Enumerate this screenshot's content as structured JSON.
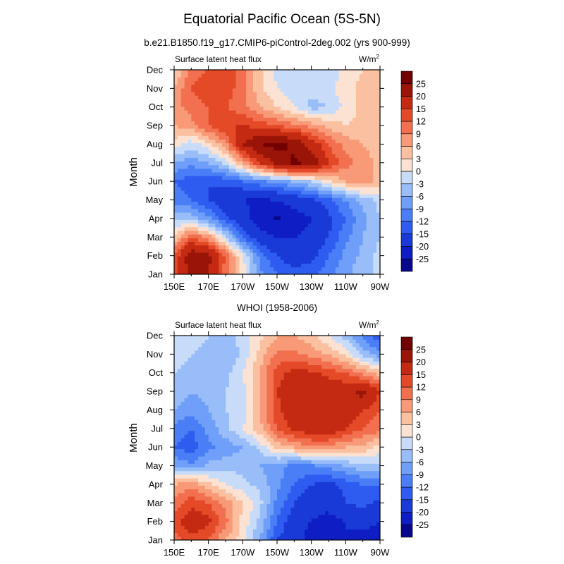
{
  "figure": {
    "title": "Equatorial Pacific Ocean (5S-5N)"
  },
  "contour_levels": {
    "labels": [
      "-25",
      "-20",
      "-15",
      "-12",
      "-9",
      "-6",
      "-3",
      "0",
      "3",
      "6",
      "9",
      "12",
      "15",
      "20",
      "25"
    ],
    "values": [
      -25,
      -20,
      -15,
      -12,
      -9,
      -6,
      -3,
      0,
      3,
      6,
      9,
      12,
      15,
      20,
      25
    ],
    "colors": [
      "#08088c",
      "#0e1ec4",
      "#1a3ad8",
      "#2f5cf0",
      "#4a7ef7",
      "#6f9ff9",
      "#98bdf9",
      "#c8dcfa",
      "#fbe2d2",
      "#fbc0a0",
      "#f89a77",
      "#f2704f",
      "#e44a28",
      "#c42a12",
      "#9a1408",
      "#720000"
    ]
  },
  "chart_data": [
    {
      "type": "heatmap",
      "title": "b.e21.B1850.f19_g17.CMIP6-piControl-2deg.002 (yrs 900-999)",
      "left_string": "Surface latent heat flux",
      "right_string": "W/m",
      "right_string_sup": "2",
      "ylabel": "Month",
      "x_tick_labels": [
        "150E",
        "170E",
        "170W",
        "150W",
        "130W",
        "110W",
        "90W"
      ],
      "x_tick_values": [
        150,
        170,
        190,
        210,
        230,
        250,
        270
      ],
      "xlim": [
        150,
        270
      ],
      "y_tick_labels": [
        "Jan",
        "Feb",
        "Mar",
        "Apr",
        "May",
        "Jun",
        "Jul",
        "Aug",
        "Sep",
        "Oct",
        "Nov",
        "Dec"
      ],
      "ylim": [
        1,
        12
      ],
      "lon_grid": [
        150,
        160,
        170,
        180,
        190,
        200,
        210,
        220,
        230,
        240,
        250,
        260,
        270
      ],
      "z": [
        [
          14,
          22,
          20,
          10,
          2,
          -8,
          -12,
          -14,
          -13,
          -10,
          -7,
          -4,
          -2
        ],
        [
          12,
          24,
          22,
          12,
          0,
          -10,
          -15,
          -17,
          -16,
          -12,
          -8,
          -5,
          -2
        ],
        [
          4,
          12,
          8,
          -2,
          -12,
          -18,
          -20,
          -20,
          -19,
          -15,
          -10,
          -6,
          -3
        ],
        [
          -4,
          -4,
          -8,
          -14,
          -18,
          -22,
          -26,
          -22,
          -20,
          -16,
          -12,
          -7,
          -3
        ],
        [
          -10,
          -12,
          -15,
          -18,
          -20,
          -21,
          -20,
          -18,
          -16,
          -13,
          -9,
          -5,
          -2
        ],
        [
          -12,
          -14,
          -15,
          -14,
          -12,
          -10,
          -8,
          -6,
          -3,
          2,
          6,
          8,
          5
        ],
        [
          -6,
          -8,
          -6,
          -2,
          6,
          15,
          22,
          26,
          24,
          15,
          10,
          8,
          5
        ],
        [
          2,
          -2,
          2,
          8,
          20,
          25,
          27,
          24,
          18,
          12,
          8,
          6,
          4
        ],
        [
          6,
          8,
          12,
          15,
          15,
          14,
          12,
          10,
          8,
          5,
          3,
          4,
          3
        ],
        [
          8,
          10,
          12,
          12,
          10,
          6,
          3,
          0,
          -4,
          -3,
          1,
          4,
          4
        ],
        [
          6,
          12,
          15,
          14,
          10,
          4,
          0,
          -2,
          -2,
          -1,
          2,
          4,
          5
        ],
        [
          3,
          10,
          12,
          15,
          10,
          4,
          -1,
          -2,
          -1,
          -2,
          1,
          3,
          4
        ]
      ]
    },
    {
      "type": "heatmap",
      "title": "WHOI (1958-2006)",
      "left_string": "Surface latent heat flux",
      "right_string": "W/m",
      "right_string_sup": "2",
      "ylabel": "Month",
      "x_tick_labels": [
        "150E",
        "170E",
        "170W",
        "150W",
        "130W",
        "110W",
        "90W"
      ],
      "x_tick_values": [
        150,
        170,
        190,
        210,
        230,
        250,
        270
      ],
      "xlim": [
        150,
        270
      ],
      "y_tick_labels": [
        "Jan",
        "Feb",
        "Mar",
        "Apr",
        "May",
        "Jun",
        "Jul",
        "Aug",
        "Sep",
        "Oct",
        "Nov",
        "Dec"
      ],
      "ylim": [
        1,
        12
      ],
      "lon_grid": [
        150,
        160,
        170,
        180,
        190,
        200,
        210,
        220,
        230,
        240,
        250,
        260,
        270
      ],
      "z": [
        [
          10,
          14,
          12,
          6,
          1,
          -6,
          -15,
          -18,
          -22,
          -20,
          -20,
          -22,
          -25
        ],
        [
          14,
          18,
          16,
          10,
          2,
          -4,
          -12,
          -18,
          -20,
          -22,
          -20,
          -18,
          -20
        ],
        [
          10,
          14,
          12,
          8,
          3,
          -2,
          -10,
          -15,
          -18,
          -18,
          -15,
          -14,
          -16
        ],
        [
          6,
          8,
          4,
          0,
          -2,
          -4,
          -8,
          -12,
          -15,
          -16,
          -14,
          -12,
          -12
        ],
        [
          -6,
          -8,
          -5,
          -4,
          -4,
          -6,
          -8,
          -10,
          -10,
          -8,
          -6,
          -4,
          -4
        ],
        [
          -12,
          -14,
          -10,
          -8,
          -6,
          -2,
          4,
          6,
          8,
          8,
          6,
          5,
          2
        ],
        [
          -10,
          -12,
          -8,
          -4,
          0,
          5,
          12,
          16,
          18,
          18,
          15,
          12,
          10
        ],
        [
          -6,
          -8,
          -6,
          -3,
          -2,
          6,
          14,
          18,
          18,
          20,
          18,
          15,
          12
        ],
        [
          -4,
          -6,
          -5,
          -3,
          -1,
          5,
          15,
          18,
          16,
          18,
          18,
          22,
          15
        ],
        [
          -3,
          -4,
          -6,
          -4,
          0,
          6,
          14,
          16,
          16,
          14,
          12,
          8,
          5
        ],
        [
          -2,
          -3,
          -4,
          -6,
          -2,
          4,
          10,
          10,
          8,
          6,
          2,
          -4,
          -8
        ],
        [
          -2,
          -2,
          -3,
          -4,
          -2,
          2,
          6,
          6,
          4,
          0,
          -4,
          -10,
          -14
        ]
      ]
    }
  ]
}
